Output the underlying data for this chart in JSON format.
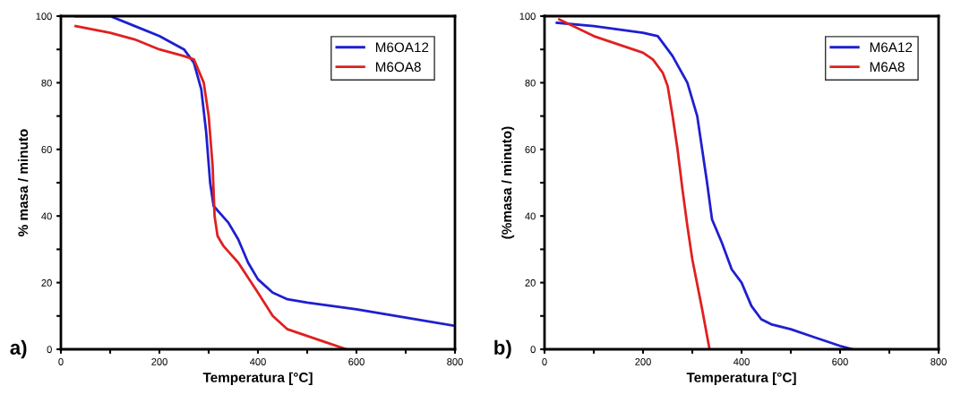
{
  "chart_data": [
    {
      "type": "line",
      "xlabel": "Temperatura [°C]",
      "ylabel": "% masa / minuto",
      "annotations": [
        "a)"
      ],
      "legend": "top right",
      "grid": false,
      "xlim": [
        0,
        800
      ],
      "ylim": [
        0,
        100
      ],
      "xticks": [
        0,
        {
          "value": 100,
          "label": null
        },
        200,
        {
          "value": 300,
          "label": null
        },
        400,
        {
          "value": 500,
          "label": null
        },
        600,
        {
          "value": 700,
          "label": null
        },
        800
      ],
      "yticks": [
        0,
        {
          "value": 10,
          "label": null
        },
        20,
        {
          "value": 30,
          "label": null
        },
        40,
        {
          "value": 50,
          "label": null
        },
        60,
        {
          "value": 70,
          "label": null
        },
        80,
        {
          "value": 90,
          "label": null
        },
        100
      ],
      "series": [
        {
          "name": "M6OA12",
          "color": "#1f1fd0",
          "x": [
            30,
            100,
            150,
            200,
            250,
            270,
            285,
            295,
            303,
            310,
            340,
            360,
            380,
            400,
            430,
            460,
            500,
            600,
            700,
            800
          ],
          "values": [
            100,
            100,
            97,
            94,
            90,
            86,
            78,
            65,
            50,
            43,
            38,
            33,
            26,
            21,
            17,
            15,
            14,
            12,
            9.5,
            7
          ]
        },
        {
          "name": "M6OA8",
          "color": "#e02020",
          "x": [
            30,
            100,
            150,
            200,
            250,
            270,
            290,
            300,
            308,
            312,
            318,
            330,
            360,
            400,
            430,
            460,
            500,
            540,
            580
          ],
          "values": [
            97,
            95,
            93,
            90,
            88,
            87,
            80,
            70,
            55,
            40,
            34,
            31,
            26,
            17,
            10,
            6,
            4,
            2,
            0
          ]
        }
      ]
    },
    {
      "type": "line",
      "xlabel": "Temperatura [°C]",
      "ylabel": "(%masa / minuto)",
      "annotations": [
        "b)"
      ],
      "legend": "top right",
      "grid": false,
      "xlim": [
        0,
        800
      ],
      "ylim": [
        0,
        100
      ],
      "xticks": [
        0,
        {
          "value": 100,
          "label": null
        },
        200,
        {
          "value": 300,
          "label": null
        },
        400,
        {
          "value": 500,
          "label": null
        },
        600,
        {
          "value": 700,
          "label": null
        },
        800
      ],
      "yticks": [
        0,
        {
          "value": 10,
          "label": null
        },
        20,
        {
          "value": 30,
          "label": null
        },
        40,
        {
          "value": 50,
          "label": null
        },
        60,
        {
          "value": 70,
          "label": null
        },
        80,
        {
          "value": 90,
          "label": null
        },
        100
      ],
      "series": [
        {
          "name": "M6A12",
          "color": "#1f1fd0",
          "x": [
            25,
            100,
            200,
            230,
            260,
            290,
            310,
            320,
            330,
            340,
            360,
            380,
            400,
            420,
            440,
            460,
            500,
            550,
            600,
            625
          ],
          "values": [
            98,
            97,
            95,
            94,
            88,
            80,
            70,
            60,
            50,
            39,
            32,
            24,
            20,
            13,
            9,
            7.5,
            6,
            3.5,
            1,
            0
          ]
        },
        {
          "name": "M6A8",
          "color": "#e02020",
          "x": [
            30,
            100,
            200,
            220,
            240,
            250,
            260,
            270,
            280,
            290,
            300,
            320,
            335
          ],
          "values": [
            99,
            94,
            89,
            87,
            83,
            79,
            70,
            60,
            48,
            37,
            27,
            12,
            0
          ]
        }
      ]
    }
  ]
}
